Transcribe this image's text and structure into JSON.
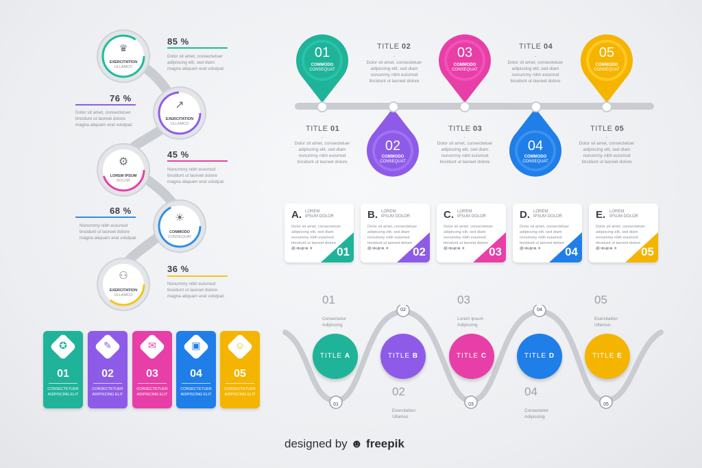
{
  "left_steps": [
    {
      "pct": "85 %",
      "icon": "trophy-icon",
      "label": "EXERCITATION",
      "sub": "ULLAMCO",
      "color": "#1abc9c",
      "text": [
        "Dolor sit amet, consectetuer",
        "adipiscing elit, sed diam",
        "magna aliquam erat volutpat."
      ]
    },
    {
      "pct": "76 %",
      "icon": "growth-chart-icon",
      "label": "EXERCITATION",
      "sub": "ULLAMCO",
      "color": "#8e5be8",
      "text": [
        "Dolor sit amet, consectetuer",
        "tincidunt ut laoreet dolore",
        "magna aliquam erat volutpat."
      ]
    },
    {
      "pct": "45 %",
      "icon": "gear-icon",
      "label": "LOREM IPSUM",
      "sub": "DOLOR",
      "color": "#e83ea8",
      "text": [
        "Nonummy nibh euismod",
        "tincidunt ut laoreet dolore",
        "magna aliquam erat volutpat."
      ]
    },
    {
      "pct": "68 %",
      "icon": "lightbulb-icon",
      "label": "COMMODO",
      "sub": "CONSEQUAT",
      "color": "#2f8fe6",
      "text": [
        "Nonummy nibh euismod",
        "tincidunt ut laoreet dolore",
        "magna aliquam erat volutpat."
      ]
    },
    {
      "pct": "36 %",
      "icon": "team-icon",
      "label": "EXERCITATION",
      "sub": "ULLAMCO",
      "color": "#f5c518",
      "text": [
        "Nonummy nibh euismod",
        "tincidunt ut laoreet dolore",
        "magna aliquam erat volutpat."
      ]
    }
  ],
  "pins": [
    {
      "num": "01",
      "label": "COMMODO",
      "sub": "CONSEQUAT",
      "color": "#1fb39a",
      "title_word": "TITLE",
      "title_num": "01"
    },
    {
      "num": "02",
      "label": "COMMODO",
      "sub": "CONSEQUAT",
      "color": "#8e5be8",
      "title_word": "TITLE",
      "title_num": "02"
    },
    {
      "num": "03",
      "label": "COMMODO",
      "sub": "CONSEQUAT",
      "color": "#e83ea8",
      "title_word": "TITLE",
      "title_num": "03"
    },
    {
      "num": "04",
      "label": "COMMODO",
      "sub": "CONSEQUAT",
      "color": "#1f7ee8",
      "title_word": "TITLE",
      "title_num": "04"
    },
    {
      "num": "05",
      "label": "COMMODO",
      "sub": "CONSEQUAT",
      "color": "#f5b400",
      "title_word": "TITLE",
      "title_num": "05"
    }
  ],
  "pin_dash": "-",
  "pin_text": [
    "Dolor sit amet, consectetuer",
    "adipiscing elit, sed diam",
    "nonummy nibh euismod",
    "tincidunt ut laoreet dolore"
  ],
  "cards": [
    {
      "letter": "A.",
      "l1": "LOREM",
      "l2": "IPSUM DOLOR",
      "num": "01",
      "color": "#1fb39a"
    },
    {
      "letter": "B.",
      "l1": "LOREM",
      "l2": "IPSUM DOLOR",
      "num": "02",
      "color": "#8e5be8"
    },
    {
      "letter": "C.",
      "l1": "LOREM",
      "l2": "IPSUM DOLOR",
      "num": "03",
      "color": "#e83ea8"
    },
    {
      "letter": "D.",
      "l1": "LOREM",
      "l2": "IPSUM DOLOR",
      "num": "04",
      "color": "#1f7ee8"
    },
    {
      "letter": "E.",
      "l1": "LOREM",
      "l2": "IPSUM DOLOR",
      "num": "05",
      "color": "#f5b400"
    }
  ],
  "card_text": [
    "Dolor sit amet, consectetuer",
    "adipiscing elit, sed diam",
    "nonummy nibh euismod",
    "tincidunt ut laoreet dolore",
    "et magna."
  ],
  "card_footer": "◍ ● ● ● ●",
  "tabs": [
    {
      "num": "01",
      "icon": "award-icon",
      "glyph": "✪",
      "l1": "CONSECTETUER",
      "l2": "ADIPISCING ELIT",
      "color": "#1fb39a"
    },
    {
      "num": "02",
      "icon": "tools-icon",
      "glyph": "✎",
      "l1": "CONSECTETUER",
      "l2": "ADIPISCING ELIT",
      "color": "#8e5be8"
    },
    {
      "num": "03",
      "icon": "chat-icon",
      "glyph": "✉",
      "l1": "CONSECTETUER",
      "l2": "ADIPISCING ELIT",
      "color": "#e83ea8"
    },
    {
      "num": "04",
      "icon": "monitor-icon",
      "glyph": "▣",
      "l1": "CONSECTETUER",
      "l2": "ADIPISCING ELIT",
      "color": "#1f7ee8"
    },
    {
      "num": "05",
      "icon": "idea-head-icon",
      "glyph": "☺",
      "l1": "CONSECTETUER",
      "l2": "ADIPISCING ELIT",
      "color": "#f5b400"
    }
  ],
  "wave": [
    {
      "title": "TITLE",
      "letter": "A",
      "color": "#1fb39a",
      "badge": "01",
      "caption_num": "01",
      "cap1": "Consectetur",
      "cap2": "Adipiscing"
    },
    {
      "title": "TITLE",
      "letter": "B",
      "color": "#8e5be8",
      "badge": "02",
      "caption_num": "02",
      "cap1": "Exercitation",
      "cap2": "Ullamco"
    },
    {
      "title": "TITLE",
      "letter": "C",
      "color": "#e83ea8",
      "badge": "03",
      "caption_num": "03",
      "cap1": "Lorem Ipsum",
      "cap2": "Adipiscing"
    },
    {
      "title": "TITLE",
      "letter": "D",
      "color": "#1f7ee8",
      "badge": "04",
      "caption_num": "04",
      "cap1": "Consectetur",
      "cap2": "Adipiscing"
    },
    {
      "title": "TITLE",
      "letter": "E",
      "color": "#f5b400",
      "badge": "05",
      "caption_num": "05",
      "cap1": "Exercitation",
      "cap2": "Ullamco"
    }
  ],
  "credit": {
    "prefix": "designed by",
    "brand": "freepik"
  }
}
